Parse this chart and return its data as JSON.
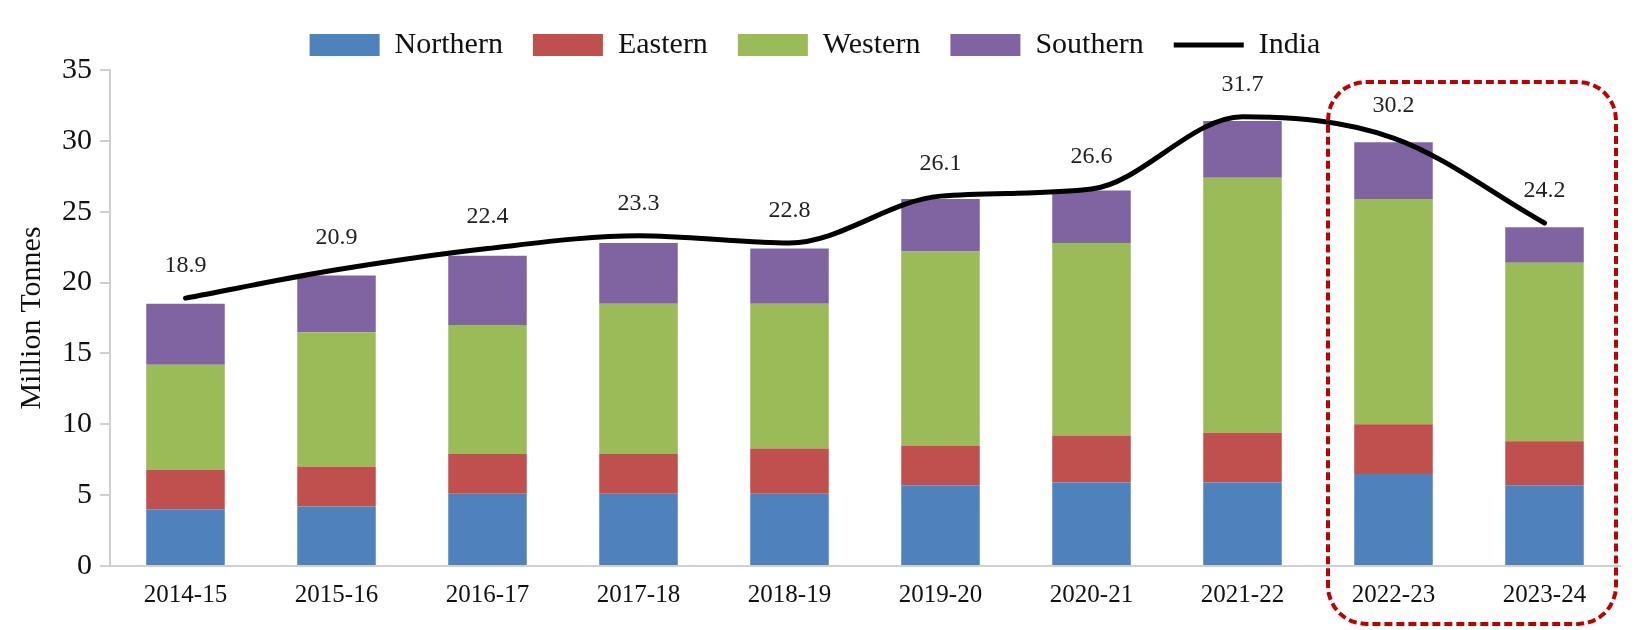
{
  "chart_data": {
    "type": "bar",
    "stacked": true,
    "ylabel": "Million Tonnes",
    "categories": [
      "2014-15",
      "2015-16",
      "2016-17",
      "2017-18",
      "2018-19",
      "2019-20",
      "2020-21",
      "2021-22",
      "2022-23",
      "2023-24"
    ],
    "series": [
      {
        "name": "Northern",
        "color": "#4f81bd",
        "values": [
          4.0,
          4.2,
          5.1,
          5.1,
          5.1,
          5.7,
          5.9,
          5.9,
          6.5,
          5.7
        ]
      },
      {
        "name": "Eastern",
        "color": "#c0504d",
        "values": [
          2.8,
          2.8,
          2.8,
          2.8,
          3.2,
          2.8,
          3.3,
          3.5,
          3.5,
          3.1
        ]
      },
      {
        "name": "Western",
        "color": "#9bbb59",
        "values": [
          7.4,
          9.5,
          9.1,
          10.6,
          10.2,
          13.7,
          13.6,
          18.0,
          15.9,
          12.6
        ]
      },
      {
        "name": "Southern",
        "color": "#8064a2",
        "values": [
          4.3,
          4.0,
          4.9,
          4.3,
          3.9,
          3.7,
          3.7,
          4.0,
          4.0,
          2.5
        ]
      },
      {
        "name": "India",
        "type": "line",
        "color": "#000000",
        "values": [
          18.9,
          20.9,
          22.4,
          23.3,
          22.8,
          26.1,
          26.6,
          31.7,
          30.2,
          24.2
        ],
        "value_labels": [
          "18.9",
          "20.9",
          "22.4",
          "23.3",
          "22.8",
          "26.1",
          "26.6",
          "31.7",
          "30.2",
          "24.2"
        ]
      }
    ],
    "ylim": [
      0,
      35
    ],
    "yticks": [
      0,
      5,
      10,
      15,
      20,
      25,
      30,
      35
    ],
    "grid": false,
    "legend": "top",
    "marker": "none"
  }
}
